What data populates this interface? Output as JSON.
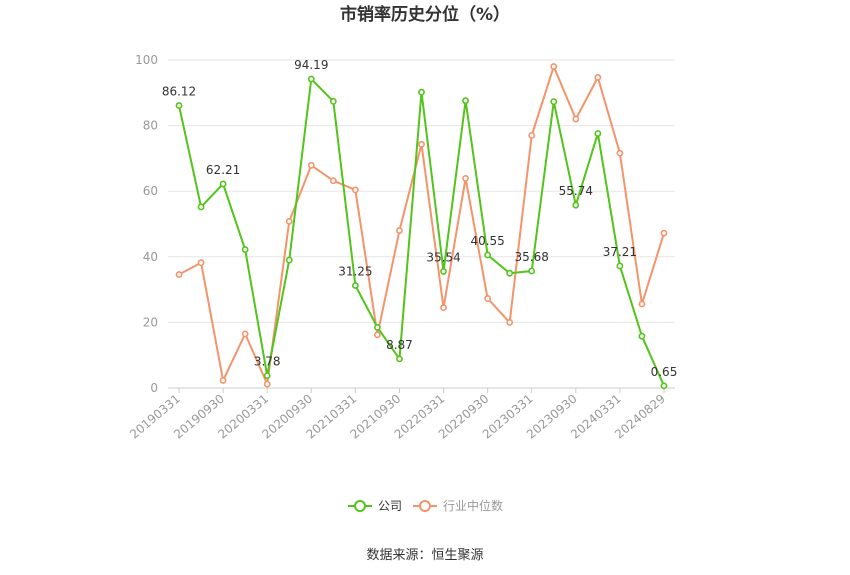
{
  "title": "市销率历史分位（%）",
  "source": "数据来源：恒生聚源",
  "colors": {
    "company": "#52c41a",
    "industry": "#f5936b",
    "grid": "#e6e6e6",
    "axis": "#cccccc"
  },
  "chart_data": {
    "type": "line",
    "ylim": [
      0,
      100
    ],
    "yticks": [
      "0",
      "20",
      "40",
      "60",
      "80",
      "100"
    ],
    "x_tick_labels": [
      "20190331",
      "20190930",
      "20200331",
      "20200930",
      "20210331",
      "20210930",
      "20220331",
      "20220930",
      "20230331",
      "20230930",
      "20240331",
      "20240829"
    ],
    "x": [
      "20190331",
      "20190630",
      "20190930",
      "20191231",
      "20200331",
      "20200630",
      "20200930",
      "20201231",
      "20210331",
      "20210630",
      "20210930",
      "20211231",
      "20220331",
      "20220630",
      "20220930",
      "20221231",
      "20230331",
      "20230630",
      "20230930",
      "20231231",
      "20240331",
      "20240630",
      "20240829"
    ],
    "series": [
      {
        "name": "公司",
        "values": [
          86.12,
          55.2,
          62.21,
          42.2,
          3.78,
          39.0,
          94.19,
          87.4,
          31.25,
          18.5,
          8.87,
          90.2,
          35.54,
          87.6,
          40.55,
          35.0,
          35.68,
          87.3,
          55.74,
          77.6,
          37.21,
          15.8,
          0.65
        ],
        "labels": {
          "0": "86.12",
          "2": "62.21",
          "4": "3.78",
          "6": "94.19",
          "8": "31.25",
          "10": "8.87",
          "12": "35.54",
          "14": "40.55",
          "16": "35.68",
          "18": "55.74",
          "20": "37.21",
          "22": "0.65"
        }
      },
      {
        "name": "行业中位数",
        "values": [
          34.6,
          38.2,
          2.3,
          16.5,
          1.2,
          50.8,
          67.9,
          63.2,
          60.4,
          16.2,
          48.0,
          74.3,
          24.5,
          63.9,
          27.3,
          20.0,
          77.0,
          98.0,
          82.0,
          94.7,
          71.6,
          25.6,
          47.2
        ]
      }
    ]
  }
}
